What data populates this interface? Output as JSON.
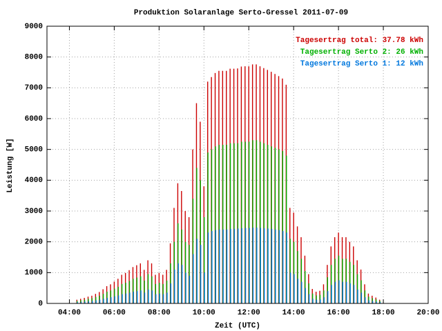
{
  "chart_data": {
    "type": "impulse",
    "title": "Produktion Solaranlage Serto-Gressel 2011-07-09",
    "x_label": "Zeit (UTC)",
    "y_label": "Leistung [W]",
    "x": [
      260,
      270,
      280,
      290,
      300,
      310,
      320,
      330,
      340,
      350,
      360,
      370,
      380,
      390,
      400,
      410,
      420,
      430,
      440,
      450,
      460,
      470,
      480,
      490,
      500,
      510,
      520,
      530,
      540,
      550,
      560,
      570,
      580,
      590,
      600,
      610,
      620,
      630,
      640,
      650,
      660,
      670,
      680,
      690,
      700,
      710,
      720,
      730,
      740,
      750,
      760,
      770,
      780,
      790,
      800,
      810,
      820,
      830,
      840,
      850,
      860,
      870,
      880,
      890,
      900,
      910,
      920,
      930,
      940,
      950,
      960,
      970,
      980,
      990,
      1000,
      1010,
      1020,
      1030,
      1040,
      1050,
      1060,
      1070
    ],
    "series": [
      {
        "name": "Tagesertrag total: 37.78 kWh",
        "color": "#cc0000",
        "values": [
          120,
          150,
          180,
          220,
          250,
          310,
          370,
          460,
          560,
          620,
          710,
          800,
          930,
          990,
          1080,
          1180,
          1240,
          1300,
          1090,
          1400,
          1300,
          930,
          990,
          930,
          1090,
          1950,
          3100,
          3900,
          3650,
          3000,
          2800,
          5000,
          6500,
          5900,
          3800,
          7200,
          7350,
          7480,
          7550,
          7550,
          7550,
          7620,
          7620,
          7630,
          7690,
          7700,
          7700,
          7760,
          7760,
          7700,
          7640,
          7580,
          7520,
          7450,
          7380,
          7300,
          7100,
          3100,
          2950,
          2500,
          2150,
          1550,
          950,
          470,
          380,
          410,
          620,
          1250,
          1850,
          2150,
          2300,
          2150,
          2150,
          2000,
          1850,
          1400,
          1100,
          620,
          320,
          250,
          190,
          120
        ]
      },
      {
        "name": "Tagesertrag Serto 2: 26 kWh",
        "color": "#00b000",
        "values": [
          80,
          100,
          120,
          150,
          170,
          210,
          250,
          310,
          380,
          420,
          480,
          540,
          630,
          670,
          730,
          800,
          840,
          880,
          740,
          950,
          880,
          630,
          670,
          630,
          740,
          1300,
          2000,
          2600,
          2400,
          2000,
          1900,
          3400,
          4400,
          4000,
          2800,
          4900,
          5000,
          5100,
          5150,
          5150,
          5150,
          5200,
          5200,
          5200,
          5250,
          5250,
          5250,
          5300,
          5300,
          5250,
          5200,
          5150,
          5100,
          5050,
          5000,
          4950,
          4800,
          2100,
          2000,
          1700,
          1450,
          1050,
          650,
          320,
          260,
          280,
          420,
          850,
          1250,
          1450,
          1550,
          1450,
          1450,
          1350,
          1250,
          950,
          750,
          420,
          220,
          170,
          130,
          80
        ]
      },
      {
        "name": "Tagesertrag Serto 1: 12 kWh",
        "color": "#0077dd",
        "values": [
          40,
          50,
          60,
          70,
          80,
          100,
          120,
          150,
          180,
          200,
          230,
          260,
          300,
          320,
          350,
          380,
          400,
          420,
          350,
          450,
          420,
          300,
          320,
          300,
          350,
          650,
          1100,
          1300,
          1250,
          1000,
          900,
          1600,
          2100,
          1900,
          1000,
          2300,
          2350,
          2380,
          2400,
          2400,
          2400,
          2420,
          2420,
          2430,
          2440,
          2450,
          2450,
          2460,
          2460,
          2450,
          2440,
          2430,
          2420,
          2400,
          2380,
          2350,
          2300,
          1000,
          950,
          800,
          700,
          500,
          300,
          150,
          120,
          130,
          200,
          400,
          600,
          700,
          750,
          700,
          700,
          650,
          600,
          450,
          350,
          200,
          100,
          80,
          60,
          40
        ]
      }
    ],
    "xlim": [
      180,
      1200
    ],
    "xticks": [
      {
        "value": 240,
        "label": "04:00"
      },
      {
        "value": 360,
        "label": "06:00"
      },
      {
        "value": 480,
        "label": "08:00"
      },
      {
        "value": 600,
        "label": "10:00"
      },
      {
        "value": 720,
        "label": "12:00"
      },
      {
        "value": 840,
        "label": "14:00"
      },
      {
        "value": 960,
        "label": "16:00"
      },
      {
        "value": 1080,
        "label": "18:00"
      },
      {
        "value": 1200,
        "label": "20:00"
      }
    ],
    "ylim": [
      0,
      9000
    ],
    "yticks": [
      0,
      1000,
      2000,
      3000,
      4000,
      5000,
      6000,
      7000,
      8000,
      9000
    ],
    "grid": true,
    "legend": "top-right"
  }
}
